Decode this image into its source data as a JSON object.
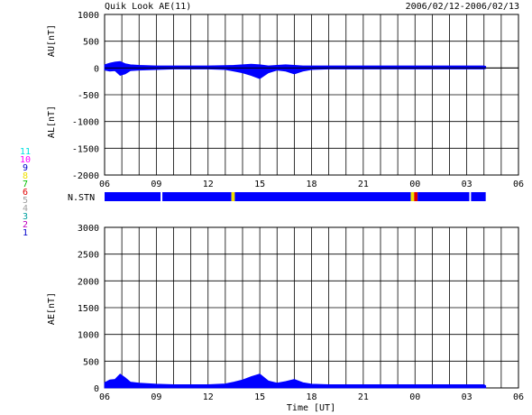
{
  "header": {
    "title": "Quik Look AE(11)",
    "date_range": "2006/02/12-2006/02/13"
  },
  "station_legend": {
    "items": [
      {
        "label": "11",
        "color": "#00e0e0"
      },
      {
        "label": "10",
        "color": "#ff00ff"
      },
      {
        "label": "9",
        "color": "#0000cc"
      },
      {
        "label": "8",
        "color": "#f0e000"
      },
      {
        "label": "7",
        "color": "#00c000"
      },
      {
        "label": "6",
        "color": "#e00000"
      },
      {
        "label": "5",
        "color": "#a0a0a0"
      },
      {
        "label": "4",
        "color": "#a0a0a0"
      },
      {
        "label": "3",
        "color": "#00a0a0"
      },
      {
        "label": "2",
        "color": "#c000c0"
      },
      {
        "label": "1",
        "color": "#0000cc"
      }
    ]
  },
  "nstn_label": "N.STN",
  "x_axis": {
    "ticks": [
      "06",
      "09",
      "12",
      "15",
      "18",
      "21",
      "00",
      "03",
      "06"
    ],
    "label": "Time [UT]"
  },
  "chart_data": [
    {
      "type": "area",
      "panel": "AU/AL",
      "ylabel_upper": "AU[nT]",
      "ylabel_lower": "AL[nT]",
      "ylim": [
        -2000,
        1000
      ],
      "yticks": [
        1000,
        500,
        0,
        -500,
        -1000,
        -1500,
        -2000
      ],
      "xlim": [
        6,
        30
      ],
      "data_end_hour": 28.1,
      "grid": true,
      "fill_color": "#0000ff",
      "au": {
        "x": [
          6.0,
          6.3,
          6.6,
          6.9,
          7.2,
          7.5,
          8.0,
          9.0,
          10.0,
          11.0,
          12.0,
          13.0,
          13.5,
          14.0,
          14.5,
          15.0,
          15.5,
          16.0,
          16.5,
          17.0,
          17.5,
          18.0,
          19.0,
          20.0,
          21.0,
          22.0,
          23.0,
          24.0,
          25.0,
          26.0,
          27.0,
          28.0,
          28.1
        ],
        "y": [
          60,
          90,
          110,
          120,
          80,
          60,
          50,
          40,
          40,
          40,
          40,
          45,
          50,
          60,
          70,
          60,
          40,
          50,
          60,
          50,
          40,
          40,
          40,
          40,
          40,
          40,
          40,
          40,
          40,
          40,
          40,
          40,
          30
        ]
      },
      "al": {
        "x": [
          6.0,
          6.3,
          6.6,
          6.9,
          7.2,
          7.5,
          8.0,
          9.0,
          10.0,
          11.0,
          12.0,
          13.0,
          13.5,
          14.0,
          14.5,
          15.0,
          15.5,
          16.0,
          16.5,
          17.0,
          17.5,
          18.0,
          19.0,
          20.0,
          21.0,
          22.0,
          23.0,
          24.0,
          25.0,
          26.0,
          27.0,
          28.0,
          28.1
        ],
        "y": [
          -40,
          -60,
          -50,
          -140,
          -110,
          -50,
          -40,
          -30,
          -20,
          -20,
          -20,
          -30,
          -60,
          -90,
          -140,
          -200,
          -90,
          -40,
          -60,
          -110,
          -60,
          -30,
          -20,
          -20,
          -20,
          -20,
          -20,
          -20,
          -20,
          -20,
          -20,
          -20,
          -10
        ]
      }
    },
    {
      "type": "bar",
      "panel": "N.STN",
      "xlim": [
        6,
        30
      ],
      "segments": [
        {
          "start": 6.0,
          "end": 9.25,
          "color": "#0000ff"
        },
        {
          "start": 9.25,
          "end": 9.35,
          "color": "#ffffff"
        },
        {
          "start": 9.35,
          "end": 13.35,
          "color": "#0000ff"
        },
        {
          "start": 13.35,
          "end": 13.55,
          "color": "#f0e000"
        },
        {
          "start": 13.55,
          "end": 23.75,
          "color": "#0000ff"
        },
        {
          "start": 23.75,
          "end": 23.95,
          "color": "#f0e000"
        },
        {
          "start": 23.95,
          "end": 24.15,
          "color": "#e00000"
        },
        {
          "start": 24.15,
          "end": 27.15,
          "color": "#0000ff"
        },
        {
          "start": 27.15,
          "end": 27.25,
          "color": "#ffffff"
        },
        {
          "start": 27.25,
          "end": 28.1,
          "color": "#0000ff"
        }
      ]
    },
    {
      "type": "area",
      "panel": "AE",
      "ylabel": "AE[nT]",
      "ylim": [
        0,
        3000
      ],
      "yticks": [
        3000,
        2500,
        2000,
        1500,
        1000,
        500,
        0
      ],
      "xlim": [
        6,
        30
      ],
      "data_end_hour": 28.1,
      "grid": true,
      "fill_color": "#0000ff",
      "x": [
        6.0,
        6.3,
        6.6,
        6.9,
        7.2,
        7.5,
        8.0,
        9.0,
        10.0,
        11.0,
        12.0,
        13.0,
        13.5,
        14.0,
        14.5,
        15.0,
        15.5,
        16.0,
        16.5,
        17.0,
        17.5,
        18.0,
        19.0,
        20.0,
        21.0,
        22.0,
        23.0,
        24.0,
        25.0,
        26.0,
        27.0,
        28.0,
        28.1
      ],
      "y": [
        100,
        150,
        160,
        260,
        190,
        110,
        90,
        70,
        60,
        60,
        60,
        75,
        110,
        150,
        210,
        260,
        130,
        90,
        120,
        160,
        100,
        70,
        60,
        60,
        60,
        60,
        60,
        60,
        60,
        60,
        60,
        60,
        40
      ]
    }
  ]
}
